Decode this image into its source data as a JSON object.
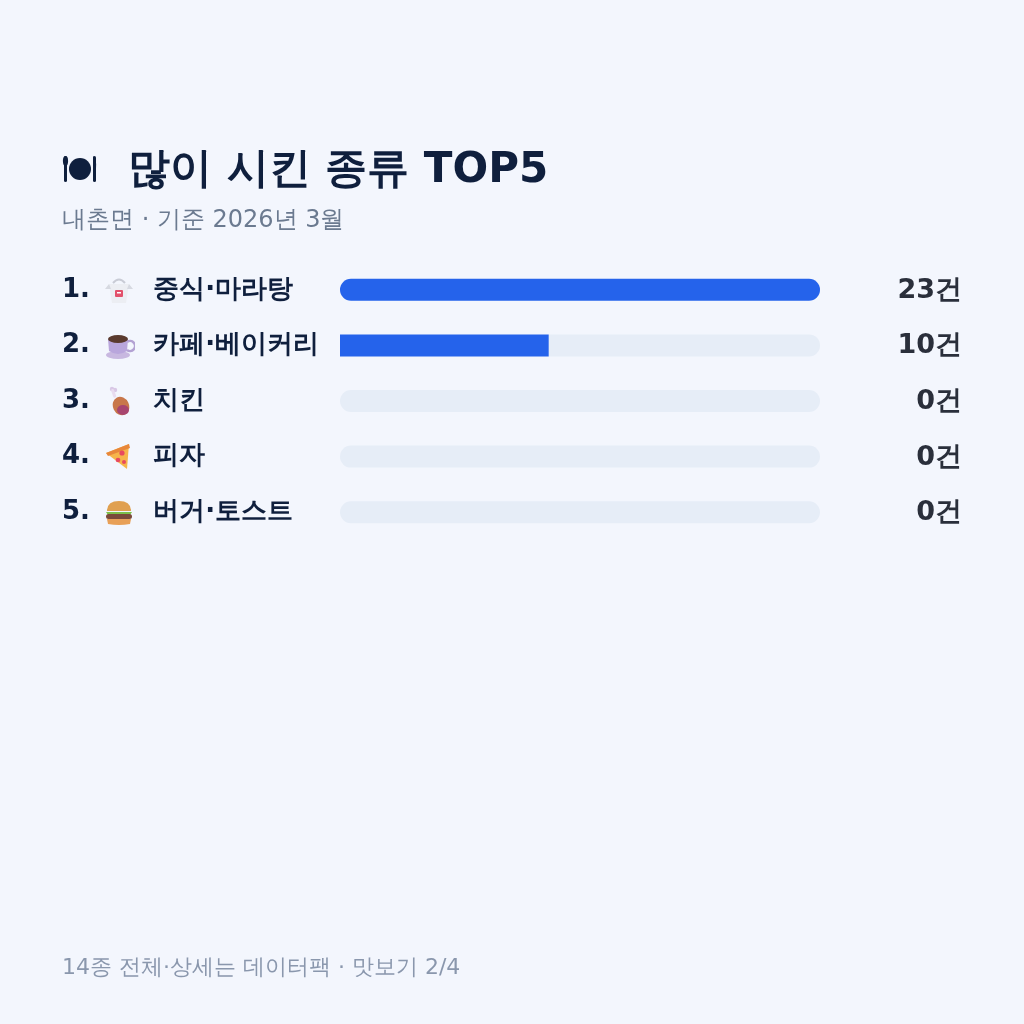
{
  "chart_data": {
    "type": "bar",
    "orientation": "horizontal",
    "stacked": true,
    "title": "많이 시킨 종류 TOP5",
    "subtitle": "내촌면 · 기준 2026년 3월",
    "categories": [
      "1. 중식·마라탕",
      "2. 카페·베이커리",
      "3. 치킨",
      "4. 피자",
      "5. 버거·토스트"
    ],
    "series": [
      {
        "color": "#2563eb",
        "values": [
          23,
          10,
          0,
          0,
          0
        ],
        "value_labels": [
          "23건",
          "10건",
          "0건",
          "0건",
          "0건"
        ]
      },
      {
        "color": "#e6edf7",
        "values": [
          0,
          13,
          23,
          23,
          23
        ]
      }
    ],
    "xlim": [
      0,
      23
    ],
    "tick_labels": "y",
    "annotations": [
      "14종 전체·상세는 데이터팩 · 맛보기 2/4"
    ]
  }
}
